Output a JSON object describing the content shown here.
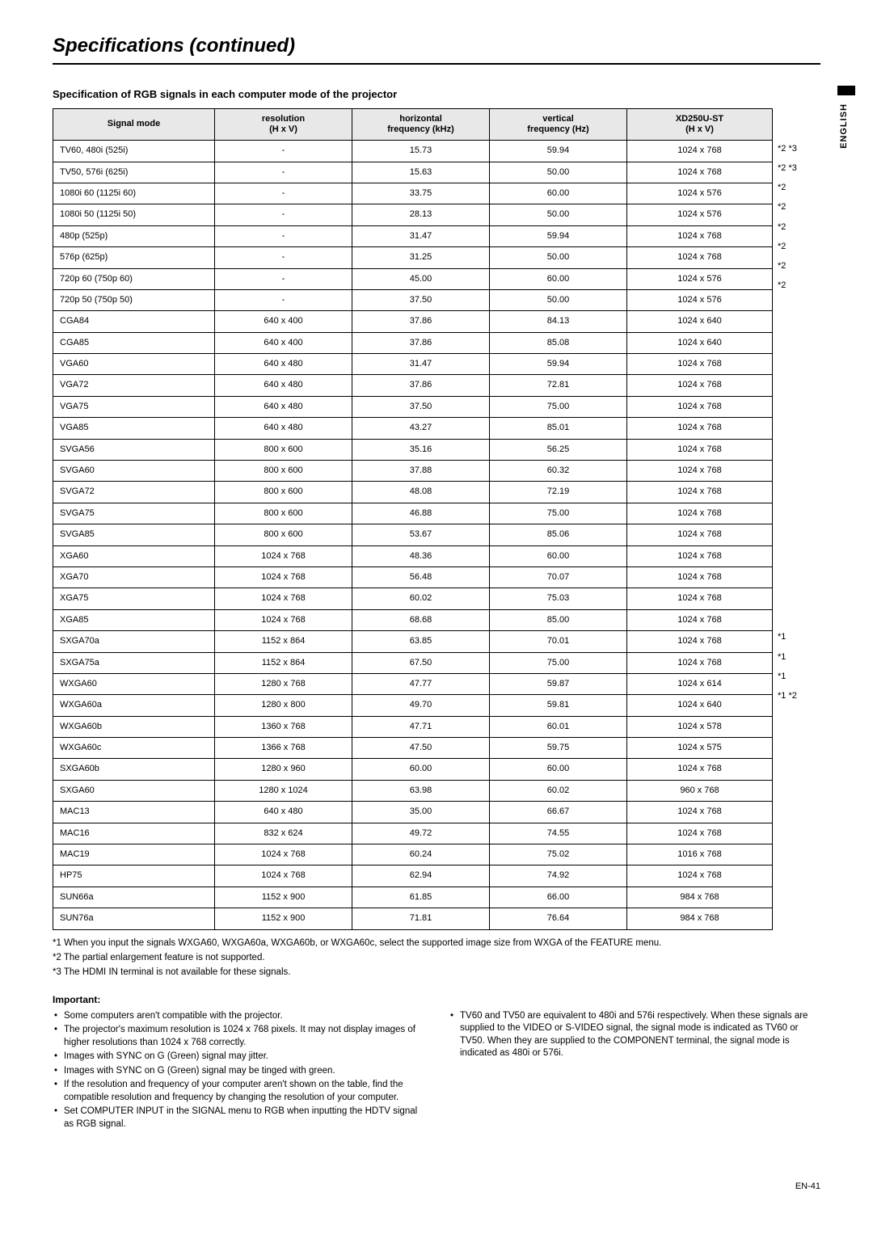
{
  "page": {
    "title": "Specifications (continued)",
    "section_heading": "Specification of RGB signals in each computer mode of the projector",
    "side_label": "ENGLISH",
    "page_number": "EN-41"
  },
  "table": {
    "columns": [
      "Signal mode",
      "resolution\n(H x V)",
      "horizontal\nfrequency (kHz)",
      "vertical\nfrequency (Hz)",
      "XD250U-ST\n(H x V)"
    ],
    "col_widths": [
      "200px",
      "170px",
      "170px",
      "170px",
      "180px"
    ],
    "rows": [
      {
        "c": [
          "TV60, 480i (525i)",
          "-",
          "15.73",
          "59.94",
          "1024 x 768"
        ],
        "n": "*2 *3"
      },
      {
        "c": [
          "TV50, 576i (625i)",
          "-",
          "15.63",
          "50.00",
          "1024 x 768"
        ],
        "n": "*2 *3"
      },
      {
        "c": [
          "1080i 60 (1125i 60)",
          "-",
          "33.75",
          "60.00",
          "1024 x 576"
        ],
        "n": "*2"
      },
      {
        "c": [
          "1080i 50 (1125i 50)",
          "-",
          "28.13",
          "50.00",
          "1024 x 576"
        ],
        "n": "*2"
      },
      {
        "c": [
          "480p (525p)",
          "-",
          "31.47",
          "59.94",
          "1024 x 768"
        ],
        "n": "*2"
      },
      {
        "c": [
          "576p (625p)",
          "-",
          "31.25",
          "50.00",
          "1024 x 768"
        ],
        "n": "*2"
      },
      {
        "c": [
          "720p 60 (750p 60)",
          "-",
          "45.00",
          "60.00",
          "1024 x 576"
        ],
        "n": "*2"
      },
      {
        "c": [
          "720p 50 (750p 50)",
          "-",
          "37.50",
          "50.00",
          "1024 x 576"
        ],
        "n": "*2"
      },
      {
        "c": [
          "CGA84",
          "640 x 400",
          "37.86",
          "84.13",
          "1024 x 640"
        ],
        "n": ""
      },
      {
        "c": [
          "CGA85",
          "640 x 400",
          "37.86",
          "85.08",
          "1024 x 640"
        ],
        "n": ""
      },
      {
        "c": [
          "VGA60",
          "640 x 480",
          "31.47",
          "59.94",
          "1024 x 768"
        ],
        "n": ""
      },
      {
        "c": [
          "VGA72",
          "640 x 480",
          "37.86",
          "72.81",
          "1024 x 768"
        ],
        "n": ""
      },
      {
        "c": [
          "VGA75",
          "640 x 480",
          "37.50",
          "75.00",
          "1024 x 768"
        ],
        "n": ""
      },
      {
        "c": [
          "VGA85",
          "640 x 480",
          "43.27",
          "85.01",
          "1024 x 768"
        ],
        "n": ""
      },
      {
        "c": [
          "SVGA56",
          "800 x 600",
          "35.16",
          "56.25",
          "1024 x 768"
        ],
        "n": ""
      },
      {
        "c": [
          "SVGA60",
          "800 x 600",
          "37.88",
          "60.32",
          "1024 x 768"
        ],
        "n": ""
      },
      {
        "c": [
          "SVGA72",
          "800 x 600",
          "48.08",
          "72.19",
          "1024 x 768"
        ],
        "n": ""
      },
      {
        "c": [
          "SVGA75",
          "800 x 600",
          "46.88",
          "75.00",
          "1024 x 768"
        ],
        "n": ""
      },
      {
        "c": [
          "SVGA85",
          "800 x 600",
          "53.67",
          "85.06",
          "1024 x 768"
        ],
        "n": ""
      },
      {
        "c": [
          "XGA60",
          "1024 x 768",
          "48.36",
          "60.00",
          "1024 x 768"
        ],
        "n": ""
      },
      {
        "c": [
          "XGA70",
          "1024 x 768",
          "56.48",
          "70.07",
          "1024 x 768"
        ],
        "n": ""
      },
      {
        "c": [
          "XGA75",
          "1024 x 768",
          "60.02",
          "75.03",
          "1024 x 768"
        ],
        "n": ""
      },
      {
        "c": [
          "XGA85",
          "1024 x 768",
          "68.68",
          "85.00",
          "1024 x 768"
        ],
        "n": ""
      },
      {
        "c": [
          "SXGA70a",
          "1152 x 864",
          "63.85",
          "70.01",
          "1024 x 768"
        ],
        "n": ""
      },
      {
        "c": [
          "SXGA75a",
          "1152 x 864",
          "67.50",
          "75.00",
          "1024 x 768"
        ],
        "n": ""
      },
      {
        "c": [
          "WXGA60",
          "1280 x 768",
          "47.77",
          "59.87",
          "1024 x 614"
        ],
        "n": "*1"
      },
      {
        "c": [
          "WXGA60a",
          "1280 x 800",
          "49.70",
          "59.81",
          "1024 x 640"
        ],
        "n": "*1"
      },
      {
        "c": [
          "WXGA60b",
          "1360 x 768",
          "47.71",
          "60.01",
          "1024 x 578"
        ],
        "n": "*1"
      },
      {
        "c": [
          "WXGA60c",
          "1366 x 768",
          "47.50",
          "59.75",
          "1024 x 575"
        ],
        "n": "*1 *2"
      },
      {
        "c": [
          "SXGA60b",
          "1280 x 960",
          "60.00",
          "60.00",
          "1024 x 768"
        ],
        "n": ""
      },
      {
        "c": [
          "SXGA60",
          "1280 x 1024",
          "63.98",
          "60.02",
          "960 x 768"
        ],
        "n": ""
      },
      {
        "c": [
          "MAC13",
          "640 x 480",
          "35.00",
          "66.67",
          "1024 x 768"
        ],
        "n": ""
      },
      {
        "c": [
          "MAC16",
          "832 x 624",
          "49.72",
          "74.55",
          "1024 x 768"
        ],
        "n": ""
      },
      {
        "c": [
          "MAC19",
          "1024 x 768",
          "60.24",
          "75.02",
          "1016 x 768"
        ],
        "n": ""
      },
      {
        "c": [
          "HP75",
          "1024 x 768",
          "62.94",
          "74.92",
          "1024 x 768"
        ],
        "n": ""
      },
      {
        "c": [
          "SUN66a",
          "1152 x 900",
          "61.85",
          "66.00",
          "984 x 768"
        ],
        "n": ""
      },
      {
        "c": [
          "SUN76a",
          "1152 x 900",
          "71.81",
          "76.64",
          "984 x 768"
        ],
        "n": ""
      }
    ]
  },
  "footnotes": [
    "*1 When you input the signals WXGA60, WXGA60a, WXGA60b, or WXGA60c, select the supported image size from WXGA of the FEATURE menu.",
    "*2 The partial enlargement feature is not supported.",
    "*3 The HDMI IN terminal is not available for these signals."
  ],
  "important": {
    "heading": "Important:",
    "left": [
      "Some computers aren't compatible with the projector.",
      "The projector's maximum resolution is 1024 x 768 pixels. It may not display images of higher resolutions than 1024 x 768 correctly.",
      "Images with SYNC on G (Green) signal may jitter.",
      "Images with SYNC on G (Green) signal may be tinged with green.",
      "If the resolution and frequency of your computer aren't shown on the table, find the compatible resolution and frequency by changing the resolution of your computer.",
      "Set COMPUTER INPUT in the SIGNAL menu to RGB when inputting the HDTV signal as RGB signal."
    ],
    "right": [
      "TV60 and TV50 are equivalent to 480i and 576i respectively. When these signals are supplied to the VIDEO or S-VIDEO signal, the signal mode is indicated as TV60 or TV50. When they are supplied to the COMPONENT terminal, the signal mode is indicated as 480i or 576i."
    ]
  }
}
